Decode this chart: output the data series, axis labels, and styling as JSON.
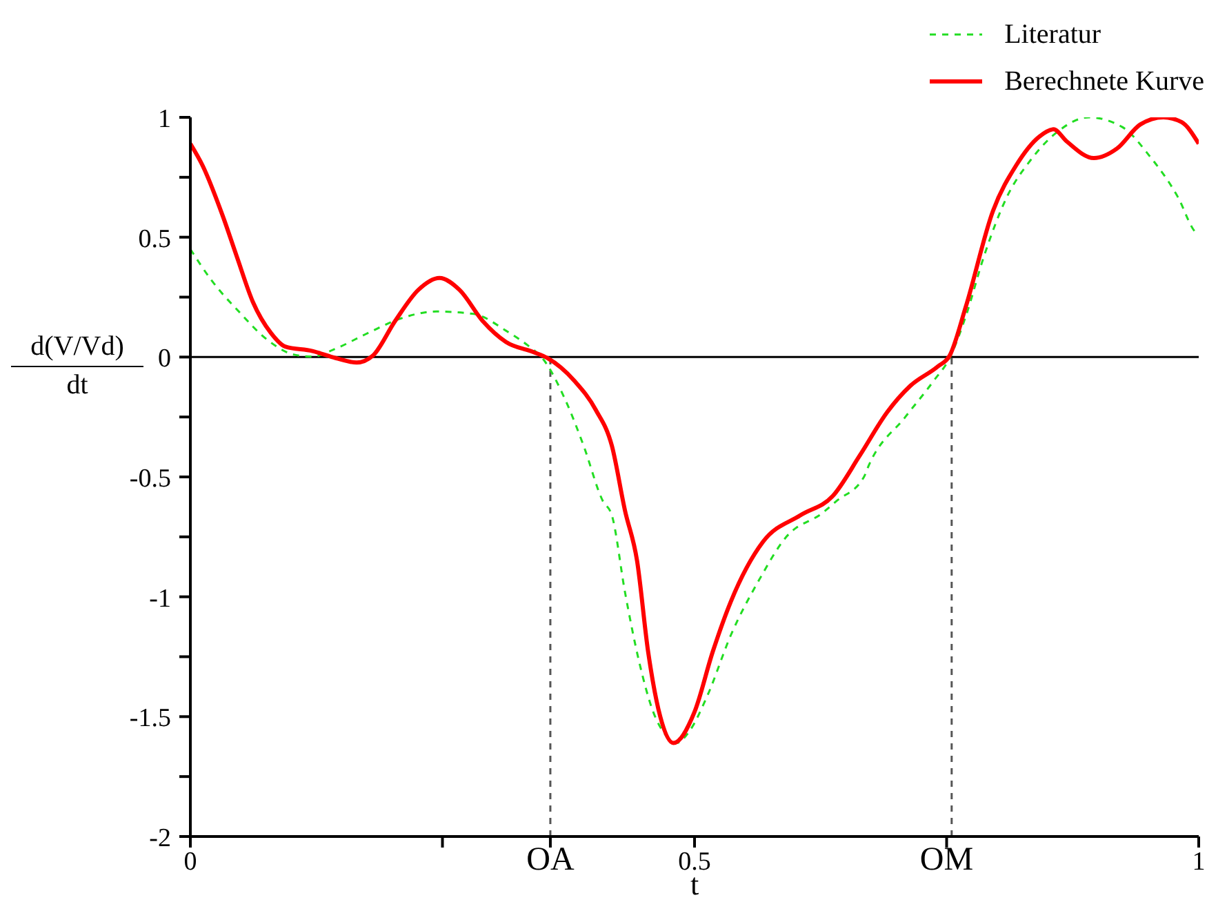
{
  "chart_data": {
    "type": "line",
    "xlabel": "t",
    "ylabel": "d(V/Vd)\ndt",
    "legend": "top right",
    "xlim": [
      0,
      1
    ],
    "ylim": [
      -2,
      1
    ],
    "xticks": [
      0,
      {
        "value": 0.25,
        "label": null
      },
      {
        "value": 0.357,
        "label": "OA"
      },
      0.5,
      {
        "value": 0.75,
        "label": "OM"
      },
      1
    ],
    "yticks": [
      -2,
      {
        "value": -1.75,
        "label": null
      },
      -1.5,
      {
        "value": -1.25,
        "label": null
      },
      -1,
      {
        "value": -0.75,
        "label": null
      },
      -0.5,
      {
        "value": -0.25,
        "label": null
      },
      0,
      {
        "value": 0.25,
        "label": null
      },
      0.5,
      {
        "value": 0.75,
        "label": null
      },
      1
    ],
    "ref_lines": [
      {
        "axis": "y",
        "value": 0,
        "color": "#000000",
        "line_style": "solid"
      },
      {
        "axis": "x",
        "value": 0.357,
        "color": "#555555",
        "line_style": "dashed"
      },
      {
        "axis": "x",
        "value": 0.755,
        "color": "#555555",
        "line_style": "dashed"
      }
    ],
    "series": [
      {
        "name": "Literatur",
        "color": "#22dd22",
        "line_style": "dashed",
        "x": [
          0,
          0.021,
          0.048,
          0.076,
          0.103,
          0.121,
          0.144,
          0.176,
          0.208,
          0.244,
          0.281,
          0.313,
          0.336,
          0.349,
          0.372,
          0.39,
          0.409,
          0.418,
          0.431,
          0.445,
          0.459,
          0.472,
          0.482,
          0.495,
          0.513,
          0.536,
          0.564,
          0.591,
          0.627,
          0.641,
          0.668,
          0.673,
          0.709,
          0.737,
          0.753,
          0.769,
          0.787,
          0.81,
          0.833,
          0.86,
          0.891,
          0.924,
          0.951,
          0.979,
          0.997,
          1
        ],
        "values": [
          0.45,
          0.32,
          0.19,
          0.073,
          0.01,
          0.002,
          0.035,
          0.1,
          0.16,
          0.19,
          0.18,
          0.11,
          0.044,
          -0.004,
          -0.18,
          -0.37,
          -0.6,
          -0.66,
          -0.98,
          -1.27,
          -1.48,
          -1.58,
          -1.61,
          -1.56,
          -1.41,
          -1.16,
          -0.93,
          -0.75,
          -0.65,
          -0.6,
          -0.5,
          -0.45,
          -0.25,
          -0.1,
          -0.004,
          0.17,
          0.42,
          0.67,
          0.82,
          0.94,
          1,
          0.96,
          0.84,
          0.67,
          0.52,
          0.51
        ]
      },
      {
        "name": "Berechnete Kurve",
        "color": "#ff0000",
        "line_style": "solid",
        "x": [
          0,
          0.012,
          0.032,
          0.046,
          0.062,
          0.08,
          0.094,
          0.121,
          0.144,
          0.165,
          0.181,
          0.203,
          0.226,
          0.247,
          0.267,
          0.29,
          0.313,
          0.34,
          0.354,
          0.381,
          0.402,
          0.418,
          0.431,
          0.443,
          0.454,
          0.466,
          0.479,
          0.5,
          0.518,
          0.536,
          0.568,
          0.605,
          0.637,
          0.664,
          0.691,
          0.714,
          0.741,
          0.753,
          0.769,
          0.796,
          0.819,
          0.842,
          0.856,
          0.869,
          0.896,
          0.919,
          0.942,
          0.965,
          0.983,
          1
        ],
        "values": [
          0.89,
          0.8,
          0.59,
          0.42,
          0.23,
          0.1,
          0.044,
          0.025,
          -0.004,
          -0.023,
          0.006,
          0.15,
          0.28,
          0.33,
          0.28,
          0.15,
          0.063,
          0.021,
          -0.004,
          -0.1,
          -0.22,
          -0.37,
          -0.64,
          -0.85,
          -1.23,
          -1.5,
          -1.61,
          -1.48,
          -1.23,
          -1.02,
          -0.77,
          -0.66,
          -0.58,
          -0.41,
          -0.23,
          -0.12,
          -0.04,
          0.006,
          0.21,
          0.61,
          0.8,
          0.92,
          0.95,
          0.9,
          0.83,
          0.87,
          0.97,
          1,
          0.98,
          0.89
        ]
      }
    ]
  }
}
